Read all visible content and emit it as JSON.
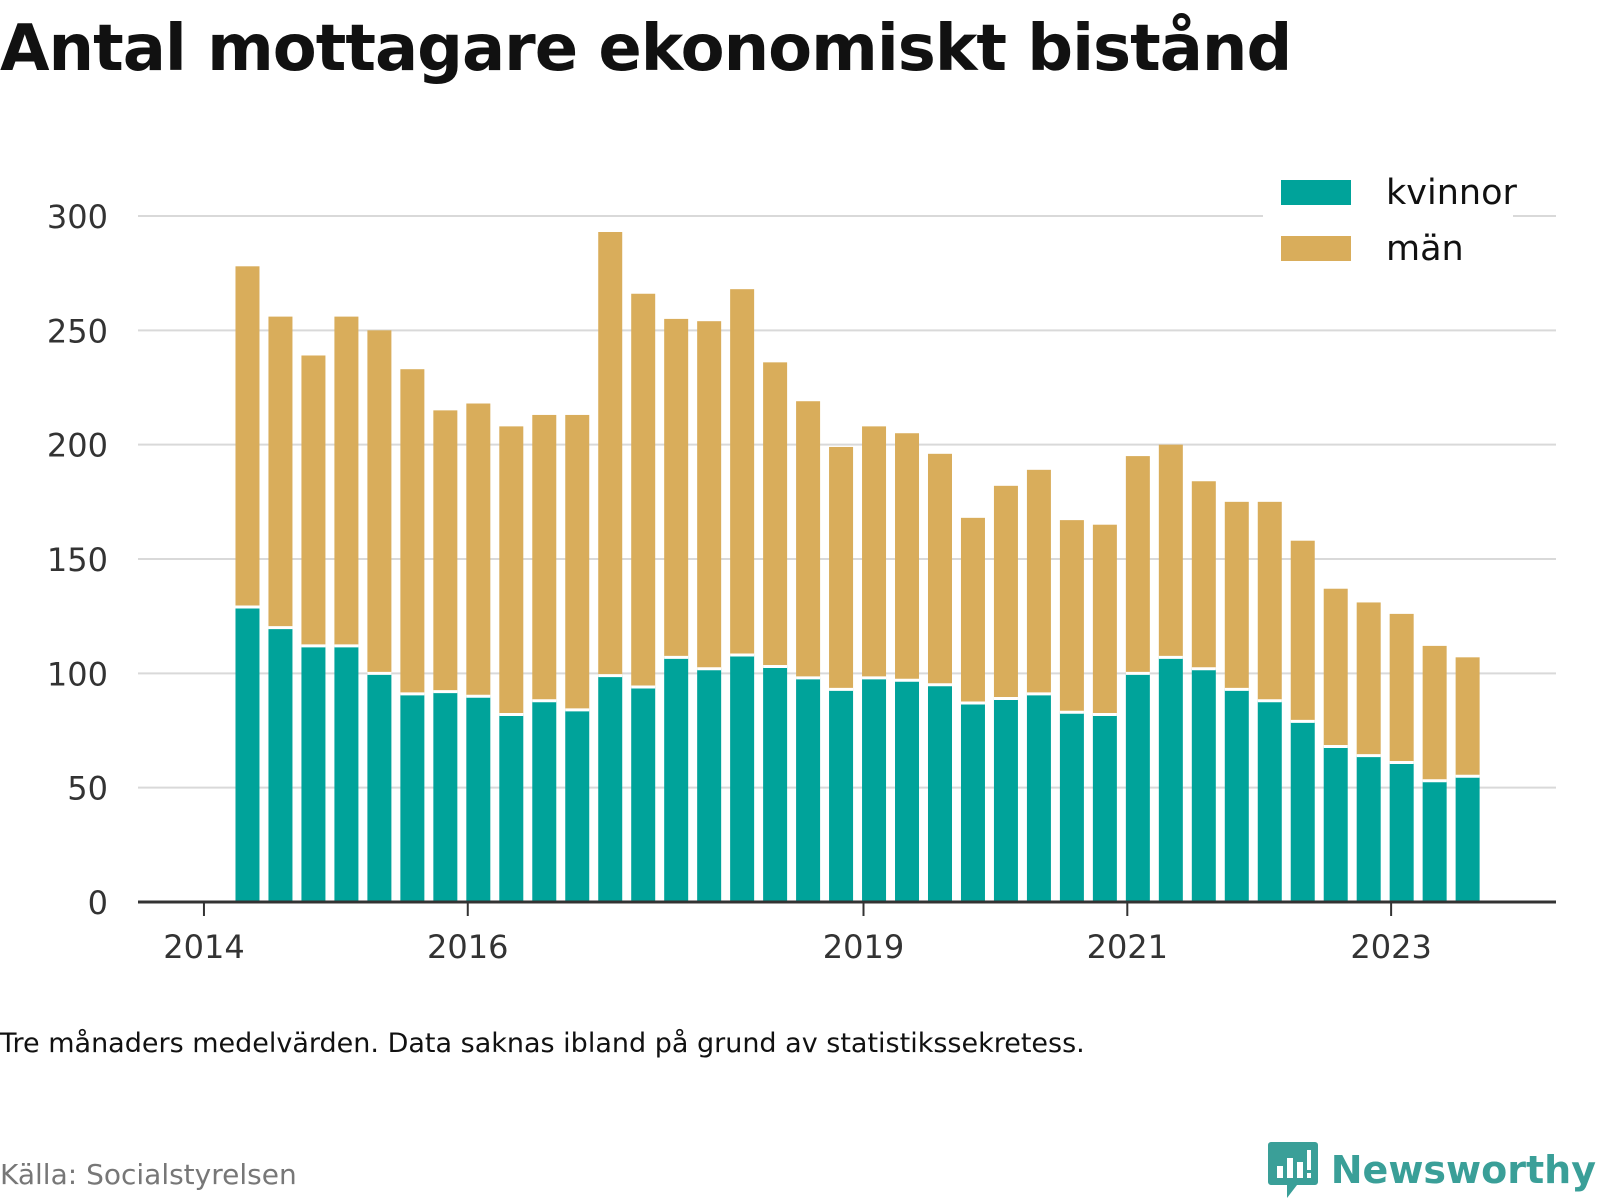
{
  "title": "Antal mottagare ekonomiskt bistånd",
  "note": "Tre månaders medelvärden. Data saknas ibland på grund av statistikssekretess.",
  "source": "Källa: Socialstyrelsen",
  "brand": "Newsworthy",
  "colors": {
    "kvinnor": "#00a39a",
    "man": "#d9ad5b",
    "grid": "#d9d9d9",
    "axis": "#333333",
    "brand": "#3a9f98"
  },
  "chart_data": {
    "type": "bar",
    "stacked": true,
    "title": "Antal mottagare ekonomiskt bistånd",
    "xlabel": "",
    "ylabel": "",
    "ylim": [
      0,
      300
    ],
    "yticks": [
      0,
      50,
      100,
      150,
      200,
      250,
      300
    ],
    "xtick_labels": [
      {
        "label": "2014",
        "x": 2014.0
      },
      {
        "label": "2016",
        "x": 2016.0
      },
      {
        "label": "2019",
        "x": 2019.0
      },
      {
        "label": "2021",
        "x": 2021.0
      },
      {
        "label": "2023",
        "x": 2023.0
      }
    ],
    "xlim": [
      2013.5,
      2024.25
    ],
    "grid": true,
    "legend": "top-right",
    "x": [
      2014.33,
      2014.58,
      2014.83,
      2015.08,
      2015.33,
      2015.58,
      2015.83,
      2016.08,
      2016.33,
      2016.58,
      2016.83,
      2017.08,
      2017.33,
      2017.58,
      2017.83,
      2018.08,
      2018.33,
      2018.58,
      2018.83,
      2019.08,
      2019.33,
      2019.58,
      2019.83,
      2020.08,
      2020.33,
      2020.58,
      2020.83,
      2021.08,
      2021.33,
      2021.58,
      2021.83,
      2022.08,
      2022.33,
      2022.58,
      2022.83,
      2023.08,
      2023.33,
      2023.58
    ],
    "series": [
      {
        "name": "kvinnor",
        "values": [
          129,
          120,
          112,
          112,
          100,
          91,
          92,
          90,
          82,
          88,
          84,
          99,
          94,
          107,
          102,
          108,
          103,
          98,
          93,
          98,
          97,
          95,
          87,
          89,
          91,
          83,
          82,
          100,
          107,
          102,
          93,
          88,
          79,
          68,
          64,
          61,
          53,
          55
        ]
      },
      {
        "name": "män",
        "values": [
          149,
          136,
          127,
          144,
          150,
          142,
          123,
          128,
          126,
          125,
          129,
          194,
          172,
          148,
          152,
          160,
          133,
          121,
          106,
          110,
          108,
          101,
          81,
          93,
          98,
          84,
          83,
          95,
          93,
          82,
          82,
          87,
          79,
          69,
          67,
          65,
          59,
          52
        ]
      }
    ]
  }
}
